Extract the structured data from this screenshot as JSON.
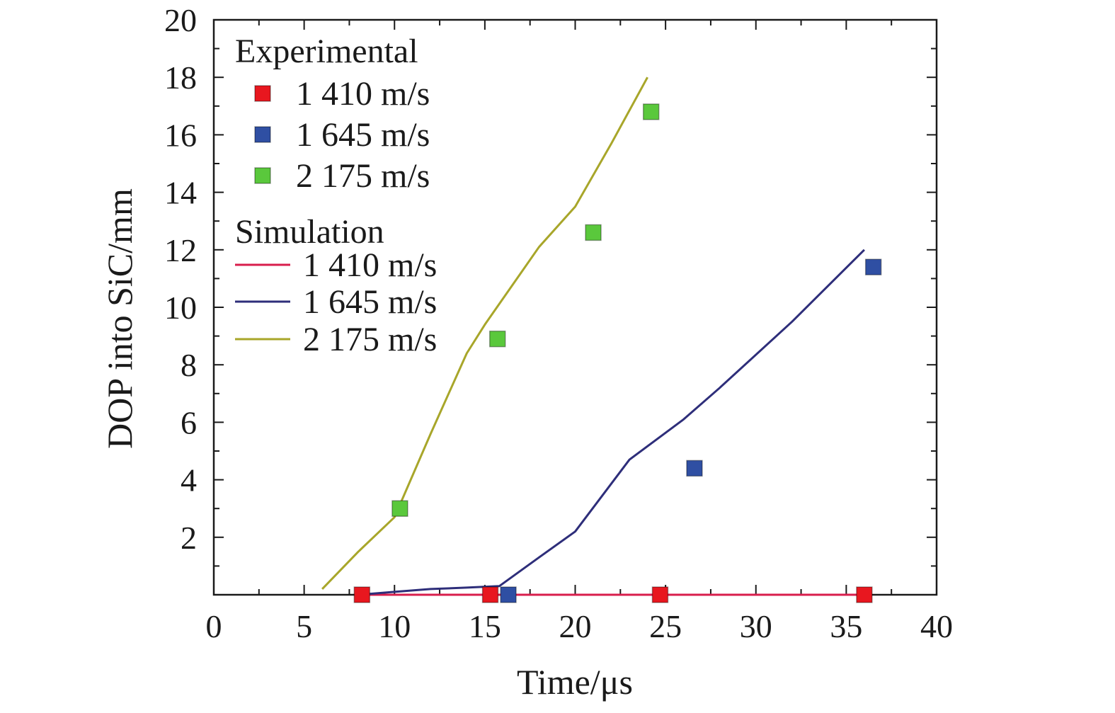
{
  "chart_data": {
    "type": "line",
    "xlabel": "Time/μs",
    "ylabel": "DOP into SiC/mm",
    "xlim": [
      0,
      40
    ],
    "ylim": [
      0,
      20
    ],
    "x_ticks": [
      "0",
      "5",
      "10",
      "15",
      "20",
      "25",
      "30",
      "35",
      "40"
    ],
    "y_ticks": [
      "2",
      "4",
      "6",
      "8",
      "10",
      "12",
      "14",
      "16",
      "18",
      "20"
    ],
    "grid": false,
    "legend_position": "top-left",
    "legend": {
      "experimental_title": "Experimental",
      "simulation_title": "Simulation"
    },
    "experimental": [
      {
        "name": "1 410 m/s",
        "color": "#e8171f",
        "marker": "square",
        "points": [
          [
            8.2,
            0.0
          ],
          [
            15.3,
            0.0
          ],
          [
            24.7,
            0.0
          ],
          [
            36.0,
            0.0
          ]
        ]
      },
      {
        "name": "1 645 m/s",
        "color": "#2f4fa3",
        "marker": "square",
        "points": [
          [
            16.3,
            0.0
          ],
          [
            26.6,
            4.4
          ],
          [
            36.5,
            11.4
          ]
        ]
      },
      {
        "name": "2 175 m/s",
        "color": "#5ac83c",
        "marker": "square",
        "points": [
          [
            10.3,
            3.0
          ],
          [
            15.7,
            8.9
          ],
          [
            21.0,
            12.6
          ],
          [
            24.2,
            16.8
          ]
        ]
      }
    ],
    "simulation": [
      {
        "name": "1 410 m/s",
        "color": "#d81e4c",
        "points": [
          [
            8.0,
            0.0
          ],
          [
            10.0,
            0.0
          ],
          [
            15.0,
            0.0
          ],
          [
            20.0,
            0.0
          ],
          [
            25.0,
            0.0
          ],
          [
            30.0,
            0.0
          ],
          [
            36.0,
            0.0
          ]
        ]
      },
      {
        "name": "1 645 m/s",
        "color": "#2e2e7a",
        "points": [
          [
            8.0,
            0.0
          ],
          [
            10.0,
            0.1
          ],
          [
            12.0,
            0.2
          ],
          [
            14.0,
            0.25
          ],
          [
            15.8,
            0.3
          ],
          [
            18.0,
            1.3
          ],
          [
            20.0,
            2.2
          ],
          [
            23.0,
            4.7
          ],
          [
            26.0,
            6.1
          ],
          [
            28.0,
            7.2
          ],
          [
            32.0,
            9.5
          ],
          [
            36.0,
            12.0
          ]
        ]
      },
      {
        "name": "2 175 m/s",
        "color": "#a8a62a",
        "points": [
          [
            6.0,
            0.2
          ],
          [
            8.0,
            1.5
          ],
          [
            10.0,
            2.7
          ],
          [
            12.0,
            5.6
          ],
          [
            14.0,
            8.4
          ],
          [
            15.0,
            9.4
          ],
          [
            18.0,
            12.1
          ],
          [
            20.0,
            13.5
          ],
          [
            22.0,
            15.7
          ],
          [
            24.0,
            18.0
          ]
        ]
      }
    ]
  }
}
